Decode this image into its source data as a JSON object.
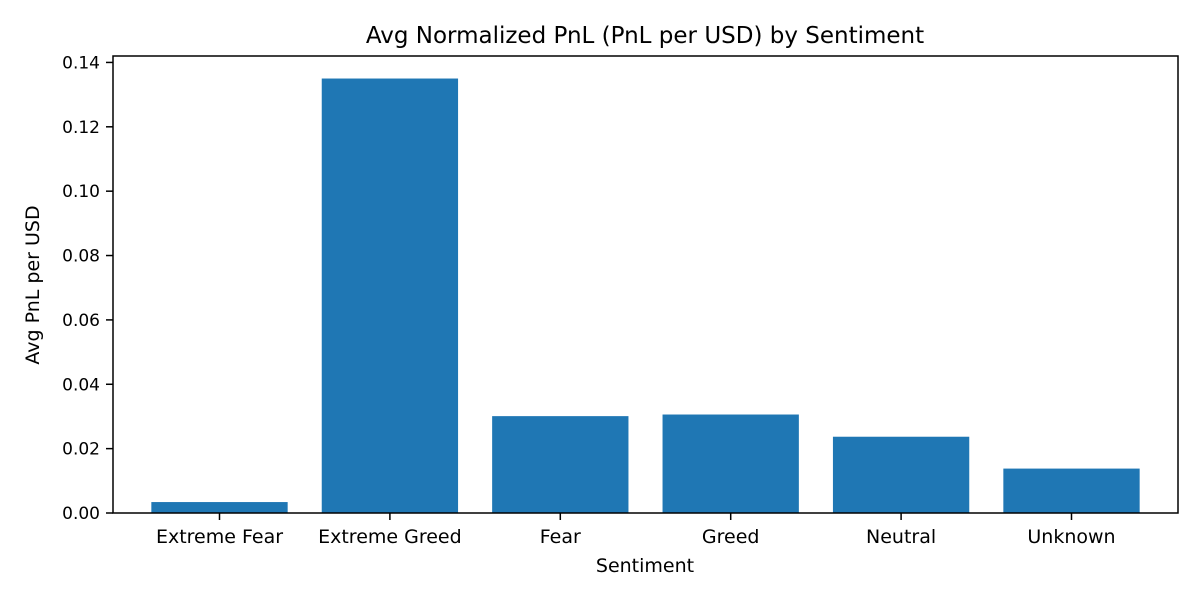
{
  "chart_data": {
    "type": "bar",
    "title": "Avg Normalized PnL (PnL per USD) by Sentiment",
    "xlabel": "Sentiment",
    "ylabel": "Avg PnL per USD",
    "categories": [
      "Extreme Fear",
      "Extreme Greed",
      "Fear",
      "Greed",
      "Neutral",
      "Unknown"
    ],
    "values": [
      0.0034,
      0.135,
      0.0301,
      0.0306,
      0.0237,
      0.0138
    ],
    "ylim": [
      0,
      0.142
    ],
    "yticks": [
      0.0,
      0.02,
      0.04,
      0.06,
      0.08,
      0.1,
      0.12,
      0.14
    ],
    "ytick_labels": [
      "0.00",
      "0.02",
      "0.04",
      "0.06",
      "0.08",
      "0.10",
      "0.12",
      "0.14"
    ],
    "bar_color": "#1f77b4",
    "grid": false,
    "legend": "none"
  }
}
